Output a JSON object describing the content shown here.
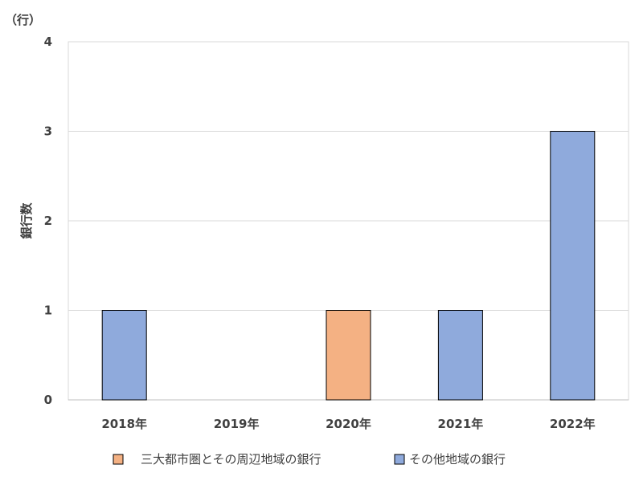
{
  "chart_data": {
    "type": "bar",
    "unit_label": "（行）",
    "ylabel": "銀行数",
    "xlabel": "",
    "categories": [
      "2018年",
      "2019年",
      "2020年",
      "2021年",
      "2022年"
    ],
    "ylim": [
      0,
      4
    ],
    "yticks": [
      0,
      1,
      2,
      3,
      4
    ],
    "grid": true,
    "legend_position": "bottom",
    "series": [
      {
        "name": "三大都市圏とその周辺地域の銀行",
        "color": "#f4b183",
        "values": [
          0,
          0,
          1,
          0,
          0
        ]
      },
      {
        "name": "その他地域の銀行",
        "color": "#8faadc",
        "values": [
          1,
          0,
          0,
          1,
          3
        ]
      }
    ]
  }
}
